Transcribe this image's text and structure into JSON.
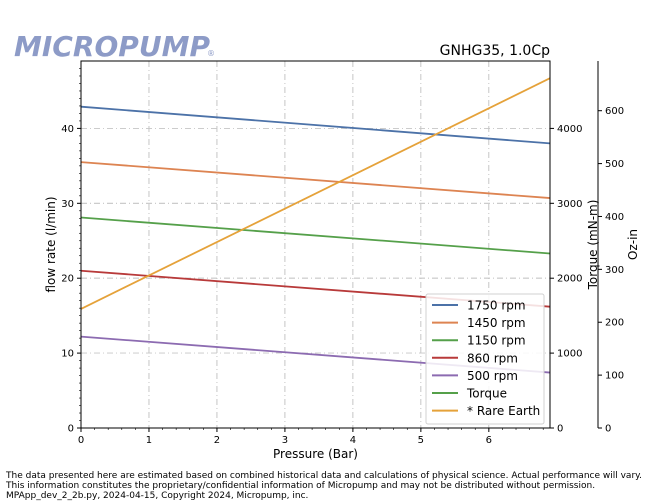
{
  "brand": {
    "logo_text": "MICROPUMP",
    "registered": "®",
    "color": "#8d9bc7"
  },
  "chart_data": {
    "type": "line",
    "title": "GNHG35,  1.0Cp",
    "xlabel": "Pressure (Bar)",
    "ylabel": "flow rate (l/min)",
    "y2label": "Torque (mN-m)",
    "y3label": "Oz-in",
    "xlim": [
      0,
      6.9
    ],
    "ylim": [
      0,
      49
    ],
    "y2lim": [
      0,
      4900
    ],
    "y3lim": [
      0,
      694
    ],
    "xticks": [
      "0",
      "1",
      "2",
      "3",
      "4",
      "5",
      "6"
    ],
    "yticks": [
      "0",
      "10",
      "20",
      "30",
      "40"
    ],
    "y2ticks": [
      "0",
      "1000",
      "2000",
      "3000",
      "4000"
    ],
    "y3ticks": [
      "0",
      "100",
      "200",
      "300",
      "400",
      "500",
      "600"
    ],
    "grid": true,
    "legend_position": "lower-right",
    "series": [
      {
        "name": "1750 rpm",
        "axis": "flow",
        "color": "#4c72a8",
        "x": [
          0,
          6.9
        ],
        "values": [
          42.9,
          38.0
        ]
      },
      {
        "name": "1450 rpm",
        "axis": "flow",
        "color": "#dd8452",
        "x": [
          0,
          6.9
        ],
        "values": [
          35.5,
          30.7
        ]
      },
      {
        "name": "1150 rpm",
        "axis": "flow",
        "color": "#55a04a",
        "x": [
          0,
          6.9
        ],
        "values": [
          28.1,
          23.3
        ]
      },
      {
        "name": "860 rpm",
        "axis": "flow",
        "color": "#b83a3a",
        "x": [
          0,
          6.9
        ],
        "values": [
          21.0,
          16.2
        ]
      },
      {
        "name": "500 rpm",
        "axis": "flow",
        "color": "#8c6bb1",
        "x": [
          0,
          6.9
        ],
        "values": [
          12.2,
          7.4
        ]
      },
      {
        "name": "Torque",
        "axis": "torque",
        "color": "#55a04a",
        "x": [],
        "values": []
      },
      {
        "name": "* Rare Earth",
        "axis": "torque",
        "color": "#e5a23a",
        "x": [
          0,
          6.9
        ],
        "values": [
          1590,
          4670
        ]
      }
    ]
  },
  "footer": {
    "line1": "The data presented here are estimated based on combined historical data and calculations of physical science.  Actual performance will vary.",
    "line2": "This information constitutes the proprietary/confidential information of Micropump and may not be distributed without permission.",
    "line3": "MPApp_dev_2_2b.py, 2024-04-15, Copyright 2024, Micropump, inc."
  }
}
